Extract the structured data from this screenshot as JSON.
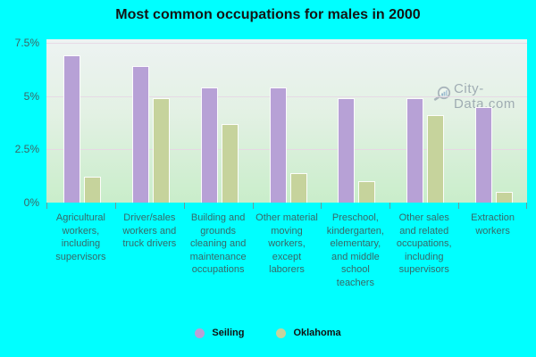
{
  "title": "Most common occupations for males in 2000",
  "watermark": {
    "text": "City-Data.com"
  },
  "legend": [
    {
      "label": "Seiling",
      "color": "#b7a1d6"
    },
    {
      "label": "Oklahoma",
      "color": "#c6d39c"
    }
  ],
  "colors": {
    "background": "#00ffff",
    "seiling_bar": "#b7a1d6",
    "oklahoma_bar": "#c6d39c",
    "plot_gradient_top": "#edf3f2",
    "plot_gradient_bottom": "#c9edca",
    "axis_text": "#3d6464",
    "gridline": "#e8d5e4"
  },
  "chart_data": {
    "type": "bar",
    "title": "Most common occupations for males in 2000",
    "categories": [
      "Agricultural workers, including supervisors",
      "Driver/sales workers and truck drivers",
      "Building and grounds cleaning and maintenance occupations",
      "Other material moving workers, except laborers",
      "Preschool, kindergarten, elementary, and middle school teachers",
      "Other sales and related occupations, including supervisors",
      "Extraction workers"
    ],
    "series": [
      {
        "name": "Seiling",
        "color": "#b7a1d6",
        "values": [
          6.9,
          6.4,
          5.4,
          5.4,
          4.9,
          4.9,
          4.5
        ]
      },
      {
        "name": "Oklahoma",
        "color": "#c6d39c",
        "values": [
          1.2,
          4.9,
          3.7,
          1.4,
          1.0,
          4.1,
          0.5
        ]
      }
    ],
    "xlabel": "",
    "ylabel": "",
    "ylim": [
      0,
      7.5
    ],
    "yticks": [
      {
        "value": 0,
        "label": "0%"
      },
      {
        "value": 2.5,
        "label": "2.5%"
      },
      {
        "value": 5,
        "label": "5%"
      },
      {
        "value": 7.5,
        "label": "7.5%"
      }
    ],
    "grid": true,
    "legend_position": "bottom"
  }
}
